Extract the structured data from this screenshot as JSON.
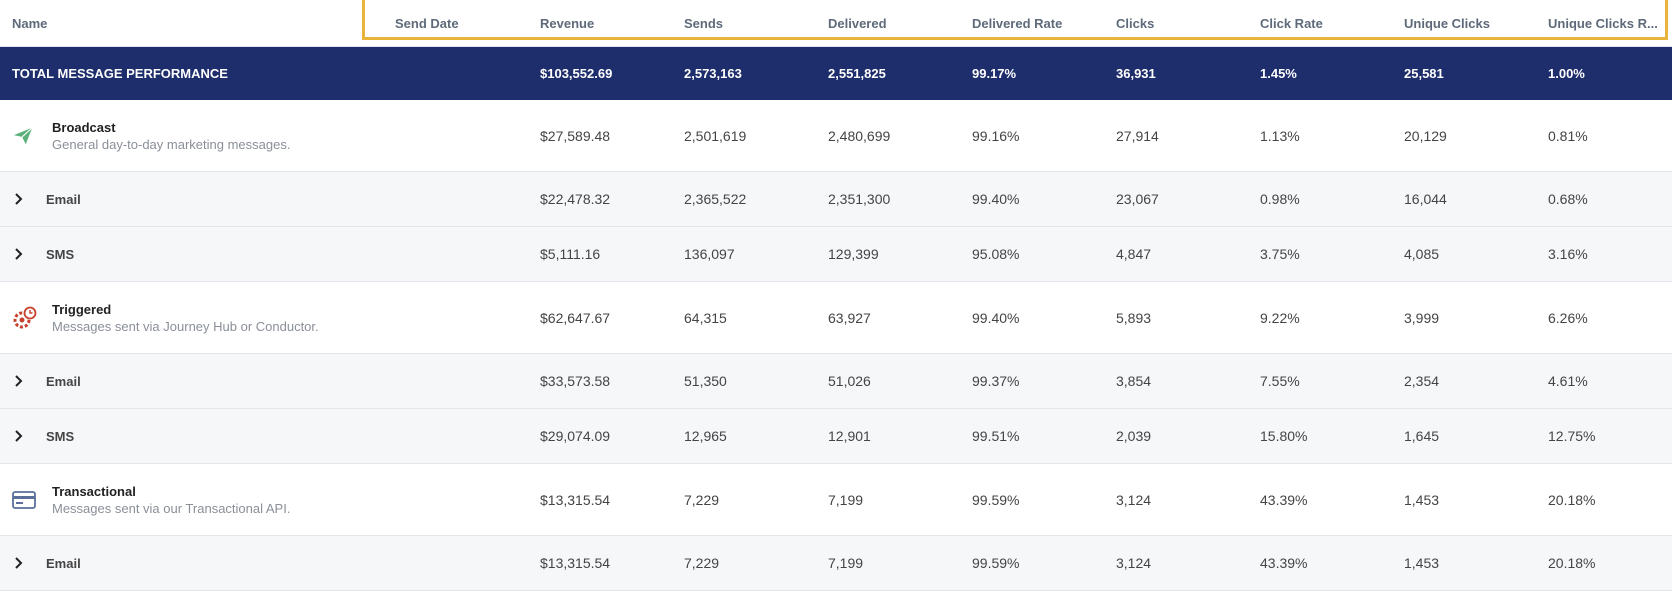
{
  "columns": [
    "Name",
    "Send Date",
    "Revenue",
    "Sends",
    "Delivered",
    "Delivered Rate",
    "Clicks",
    "Click Rate",
    "Unique Clicks",
    "Unique Clicks R..."
  ],
  "total": {
    "label": "TOTAL MESSAGE PERFORMANCE",
    "values": [
      "$103,552.69",
      "2,573,163",
      "2,551,825",
      "99.17%",
      "36,931",
      "1.45%",
      "25,581",
      "1.00%"
    ]
  },
  "groups": [
    {
      "title": "Broadcast",
      "desc": "General day-to-day marketing messages.",
      "icon": "paper-plane-icon",
      "color": "#5bb07b",
      "values": [
        "$27,589.48",
        "2,501,619",
        "2,480,699",
        "99.16%",
        "27,914",
        "1.13%",
        "20,129",
        "0.81%"
      ],
      "children": [
        {
          "name": "Email",
          "values": [
            "$22,478.32",
            "2,365,522",
            "2,351,300",
            "99.40%",
            "23,067",
            "0.98%",
            "16,044",
            "0.68%"
          ]
        },
        {
          "name": "SMS",
          "values": [
            "$5,111.16",
            "136,097",
            "129,399",
            "95.08%",
            "4,847",
            "3.75%",
            "4,085",
            "3.16%"
          ]
        }
      ]
    },
    {
      "title": "Triggered",
      "desc": "Messages sent via Journey Hub or Conductor.",
      "icon": "gear-clock-icon",
      "color": "#c8412d",
      "values": [
        "$62,647.67",
        "64,315",
        "63,927",
        "99.40%",
        "5,893",
        "9.22%",
        "3,999",
        "6.26%"
      ],
      "children": [
        {
          "name": "Email",
          "values": [
            "$33,573.58",
            "51,350",
            "51,026",
            "99.37%",
            "3,854",
            "7.55%",
            "2,354",
            "4.61%"
          ]
        },
        {
          "name": "SMS",
          "values": [
            "$29,074.09",
            "12,965",
            "12,901",
            "99.51%",
            "2,039",
            "15.80%",
            "1,645",
            "12.75%"
          ]
        }
      ]
    },
    {
      "title": "Transactional",
      "desc": "Messages sent via our Transactional API.",
      "icon": "credit-card-icon",
      "color": "#5a6f9a",
      "values": [
        "$13,315.54",
        "7,229",
        "7,199",
        "99.59%",
        "3,124",
        "43.39%",
        "1,453",
        "20.18%"
      ],
      "children": [
        {
          "name": "Email",
          "values": [
            "$13,315.54",
            "7,229",
            "7,199",
            "99.59%",
            "3,124",
            "43.39%",
            "1,453",
            "20.18%"
          ]
        }
      ]
    }
  ]
}
